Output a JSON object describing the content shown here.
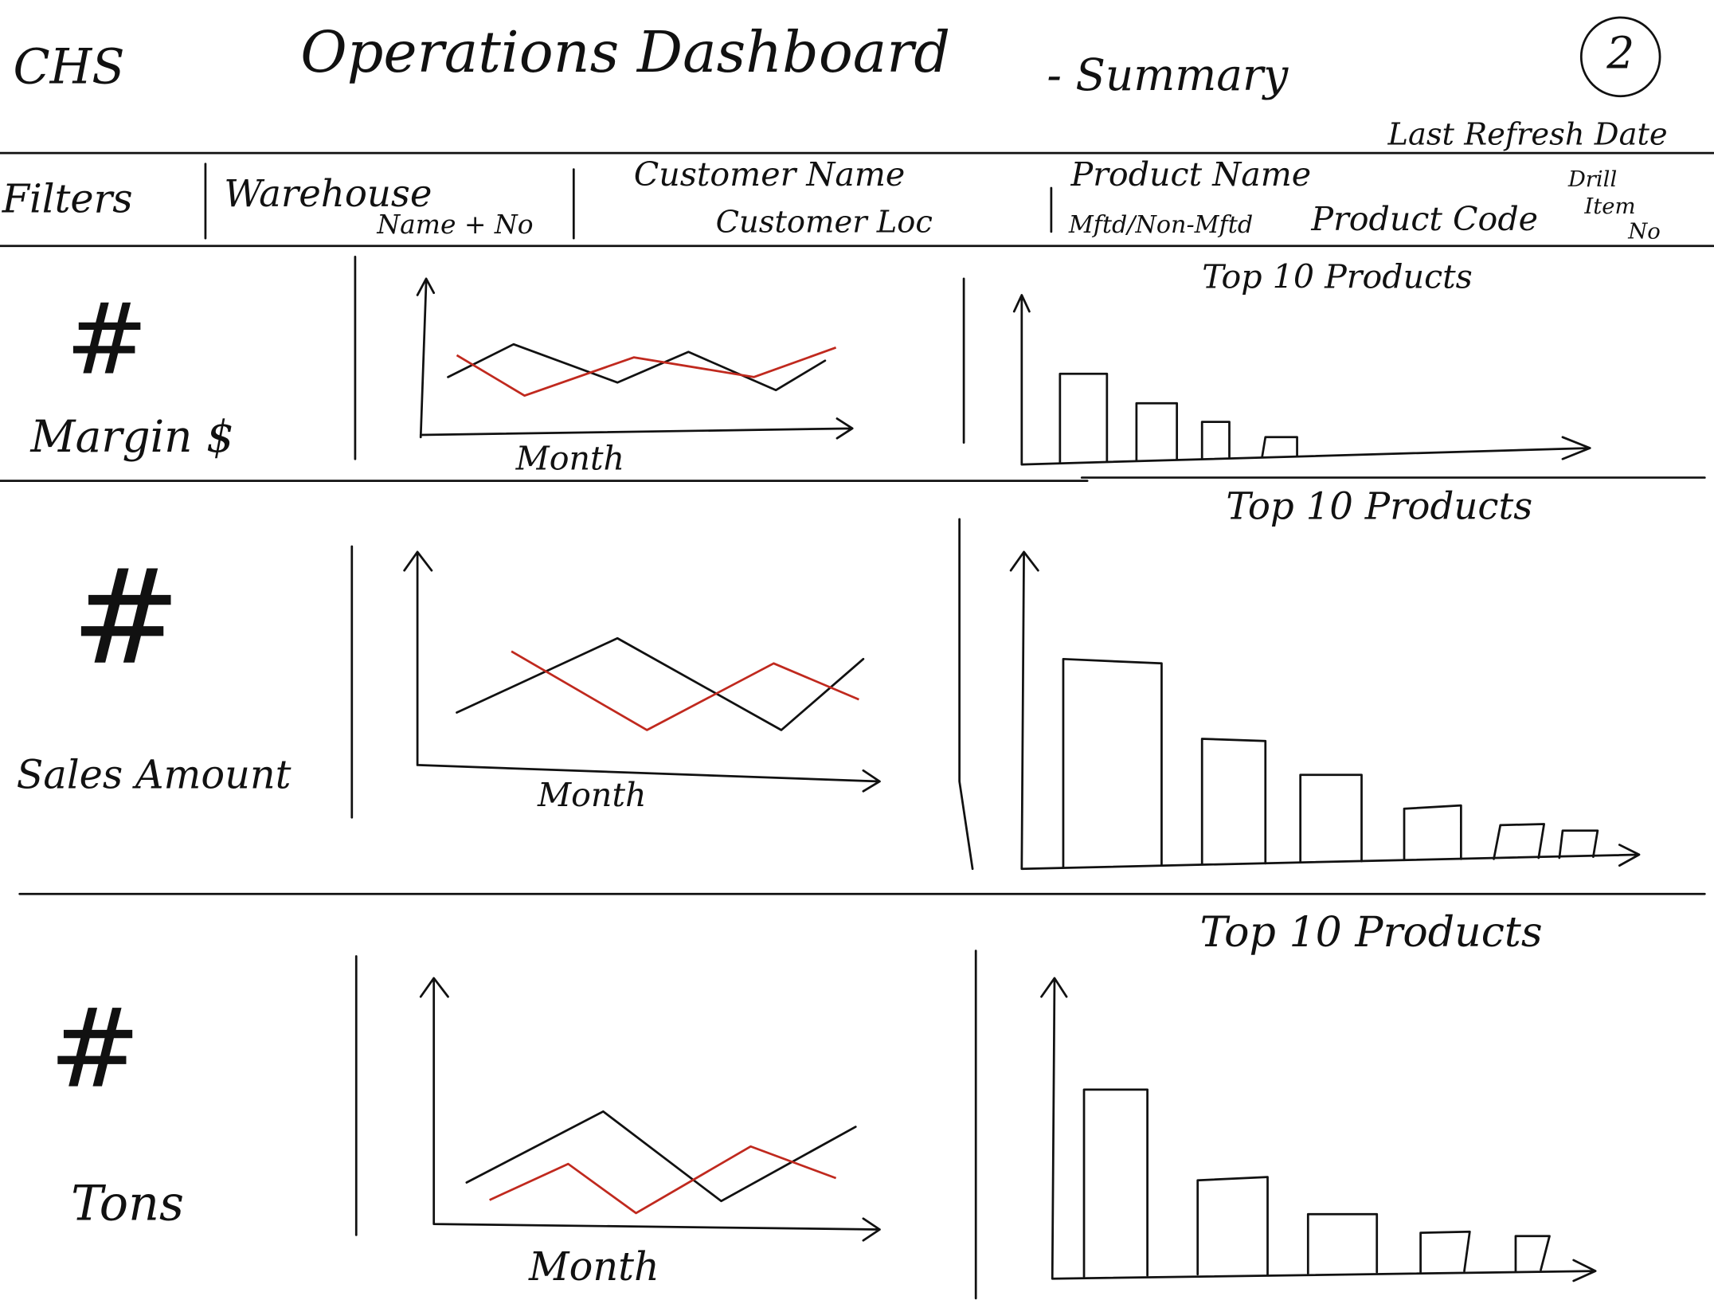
{
  "header": {
    "company": "CHS",
    "title": "Operations Dashboard",
    "subtitle": "- Summary",
    "page_number": "2",
    "last_refresh": "Last Refresh Date"
  },
  "filters": {
    "label": "Filters",
    "warehouse": [
      "Warehouse",
      "Name + No"
    ],
    "customer": [
      "Customer Name",
      "Customer Loc"
    ],
    "product": [
      "Product Name",
      "Mftd/Non-Mftd",
      "Product Code"
    ],
    "drill": [
      "Drill",
      "Item",
      "No"
    ]
  },
  "rows": [
    {
      "icon": "#",
      "metric": "Margin $",
      "x_axis_label": "Month",
      "bar_title": "Top 10 Products"
    },
    {
      "icon": "#",
      "metric": "Sales Amount",
      "x_axis_label": "Month",
      "bar_title": "Top 10 Products"
    },
    {
      "icon": "#",
      "metric": "Tons",
      "x_axis_label": "Month",
      "bar_title": "Top 10 Products"
    }
  ]
}
